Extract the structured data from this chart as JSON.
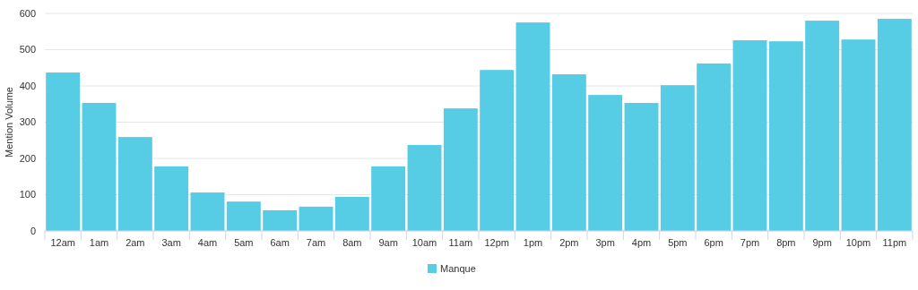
{
  "chart_data": {
    "type": "bar",
    "ylabel": "Mention Volume",
    "categories": [
      "12am",
      "1am",
      "2am",
      "3am",
      "4am",
      "5am",
      "6am",
      "7am",
      "8am",
      "9am",
      "10am",
      "11am",
      "12pm",
      "1pm",
      "2pm",
      "3pm",
      "4pm",
      "5pm",
      "6pm",
      "7pm",
      "8pm",
      "9pm",
      "10pm",
      "11pm"
    ],
    "series": [
      {
        "name": "Manque",
        "color": "#56cce5",
        "values": [
          437,
          353,
          259,
          178,
          106,
          81,
          57,
          67,
          94,
          178,
          237,
          338,
          444,
          575,
          432,
          375,
          353,
          402,
          462,
          526,
          523,
          580,
          528,
          585
        ]
      }
    ],
    "ylim": [
      0,
      600
    ],
    "yticks": [
      0,
      100,
      200,
      300,
      400,
      500,
      600
    ],
    "grid": "y",
    "legend": "bottom"
  }
}
